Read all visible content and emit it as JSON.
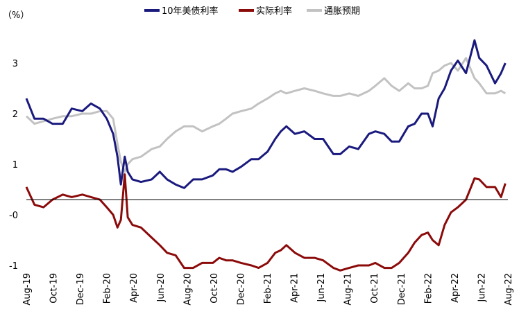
{
  "chart_data": {
    "type": "line",
    "ylabel": "（%）",
    "ylim": [
      -1,
      3.8
    ],
    "y_ticks": [
      "-1",
      "-0",
      "1",
      "2",
      "3"
    ],
    "y_tick_values": [
      -1,
      0,
      1,
      2,
      3
    ],
    "x_ticks": [
      "Aug-19",
      "Oct-19",
      "Dec-19",
      "Feb-20",
      "Apr-20",
      "Jun-20",
      "Aug-20",
      "Oct-20",
      "Dec-20",
      "Feb-21",
      "Apr-21",
      "Jun-21",
      "Aug-21",
      "Oct-21",
      "Dec-21",
      "Feb-22",
      "Apr-22",
      "Jun-22",
      "Aug-22"
    ],
    "xlim": [
      "2019-08-01",
      "2022-08-31"
    ],
    "legend_position": "top",
    "series": [
      {
        "name": "10年美债利率",
        "color": "#1a1a7e",
        "x": [
          "2019-08-01",
          "2019-08-20",
          "2019-09-10",
          "2019-10-01",
          "2019-10-25",
          "2019-11-15",
          "2019-12-10",
          "2019-12-30",
          "2020-01-20",
          "2020-02-05",
          "2020-02-20",
          "2020-03-01",
          "2020-03-09",
          "2020-03-18",
          "2020-03-25",
          "2020-04-05",
          "2020-04-25",
          "2020-05-20",
          "2020-06-08",
          "2020-06-25",
          "2020-07-15",
          "2020-08-04",
          "2020-08-25",
          "2020-09-15",
          "2020-10-10",
          "2020-10-25",
          "2020-11-10",
          "2020-11-25",
          "2020-12-15",
          "2021-01-08",
          "2021-01-25",
          "2021-02-15",
          "2021-03-05",
          "2021-03-18",
          "2021-03-31",
          "2021-04-20",
          "2021-05-12",
          "2021-06-05",
          "2021-06-25",
          "2021-07-19",
          "2021-08-04",
          "2021-08-25",
          "2021-09-15",
          "2021-10-10",
          "2021-10-25",
          "2021-11-15",
          "2021-12-02",
          "2021-12-20",
          "2022-01-10",
          "2022-01-25",
          "2022-02-10",
          "2022-02-25",
          "2022-03-08",
          "2022-03-22",
          "2022-04-05",
          "2022-04-20",
          "2022-05-06",
          "2022-05-25",
          "2022-06-14",
          "2022-06-25",
          "2022-07-12",
          "2022-08-01",
          "2022-08-15",
          "2022-08-25"
        ],
        "values": [
          2.3,
          1.9,
          1.9,
          1.8,
          1.8,
          2.1,
          2.05,
          2.2,
          2.1,
          1.9,
          1.6,
          1.15,
          0.6,
          1.15,
          0.85,
          0.7,
          0.65,
          0.7,
          0.85,
          0.7,
          0.6,
          0.53,
          0.7,
          0.7,
          0.78,
          0.9,
          0.9,
          0.85,
          0.95,
          1.1,
          1.1,
          1.25,
          1.5,
          1.65,
          1.75,
          1.6,
          1.65,
          1.5,
          1.5,
          1.2,
          1.2,
          1.35,
          1.3,
          1.6,
          1.65,
          1.6,
          1.45,
          1.45,
          1.75,
          1.8,
          2.0,
          2.0,
          1.75,
          2.3,
          2.5,
          2.85,
          3.05,
          2.8,
          3.45,
          3.1,
          2.95,
          2.6,
          2.8,
          3.0
        ]
      },
      {
        "name": "实际利率",
        "color": "#8b0a0a",
        "x": [
          "2019-08-01",
          "2019-08-20",
          "2019-09-10",
          "2019-10-01",
          "2019-10-25",
          "2019-11-15",
          "2019-12-10",
          "2019-12-30",
          "2020-01-20",
          "2020-02-05",
          "2020-02-20",
          "2020-03-01",
          "2020-03-09",
          "2020-03-18",
          "2020-03-25",
          "2020-04-05",
          "2020-04-25",
          "2020-05-20",
          "2020-06-08",
          "2020-06-25",
          "2020-07-15",
          "2020-08-04",
          "2020-08-25",
          "2020-09-15",
          "2020-10-10",
          "2020-10-25",
          "2020-11-10",
          "2020-11-25",
          "2020-12-15",
          "2021-01-08",
          "2021-01-25",
          "2021-02-15",
          "2021-03-05",
          "2021-03-18",
          "2021-03-31",
          "2021-04-20",
          "2021-05-12",
          "2021-06-05",
          "2021-06-25",
          "2021-07-19",
          "2021-08-04",
          "2021-08-25",
          "2021-09-15",
          "2021-10-10",
          "2021-10-25",
          "2021-11-15",
          "2021-12-02",
          "2021-12-20",
          "2022-01-10",
          "2022-01-25",
          "2022-02-10",
          "2022-02-25",
          "2022-03-08",
          "2022-03-22",
          "2022-04-05",
          "2022-04-20",
          "2022-05-06",
          "2022-05-25",
          "2022-06-14",
          "2022-06-25",
          "2022-07-12",
          "2022-08-01",
          "2022-08-15",
          "2022-08-25"
        ],
        "values": [
          0.55,
          0.2,
          0.15,
          0.3,
          0.4,
          0.35,
          0.4,
          0.35,
          0.3,
          0.15,
          0.0,
          -0.25,
          -0.1,
          0.8,
          -0.05,
          -0.2,
          -0.25,
          -0.45,
          -0.6,
          -0.75,
          -0.8,
          -1.05,
          -1.05,
          -0.95,
          -0.95,
          -0.85,
          -0.9,
          -0.9,
          -0.95,
          -1.0,
          -1.05,
          -0.95,
          -0.75,
          -0.7,
          -0.6,
          -0.75,
          -0.85,
          -0.85,
          -0.9,
          -1.05,
          -1.1,
          -1.05,
          -1.0,
          -1.0,
          -0.95,
          -1.05,
          -1.05,
          -0.95,
          -0.75,
          -0.55,
          -0.4,
          -0.35,
          -0.5,
          -0.6,
          -0.2,
          0.05,
          0.15,
          0.3,
          0.72,
          0.7,
          0.55,
          0.55,
          0.35,
          0.62
        ]
      },
      {
        "name": "通胀预期",
        "color": "#c2c2c2",
        "x": [
          "2019-08-01",
          "2019-08-20",
          "2019-09-10",
          "2019-10-01",
          "2019-10-25",
          "2019-11-15",
          "2019-12-10",
          "2019-12-30",
          "2020-01-20",
          "2020-02-05",
          "2020-02-20",
          "2020-03-01",
          "2020-03-09",
          "2020-03-18",
          "2020-03-25",
          "2020-04-05",
          "2020-04-25",
          "2020-05-20",
          "2020-06-08",
          "2020-06-25",
          "2020-07-15",
          "2020-08-04",
          "2020-08-25",
          "2020-09-15",
          "2020-10-10",
          "2020-10-25",
          "2020-11-10",
          "2020-11-25",
          "2020-12-15",
          "2021-01-08",
          "2021-01-25",
          "2021-02-15",
          "2021-03-05",
          "2021-03-18",
          "2021-03-31",
          "2021-04-20",
          "2021-05-12",
          "2021-06-05",
          "2021-06-25",
          "2021-07-19",
          "2021-08-04",
          "2021-08-25",
          "2021-09-15",
          "2021-10-10",
          "2021-10-25",
          "2021-11-15",
          "2021-12-02",
          "2021-12-20",
          "2022-01-10",
          "2022-01-25",
          "2022-02-10",
          "2022-02-25",
          "2022-03-08",
          "2022-03-22",
          "2022-04-05",
          "2022-04-20",
          "2022-05-06",
          "2022-05-25",
          "2022-06-14",
          "2022-06-25",
          "2022-07-12",
          "2022-08-01",
          "2022-08-15",
          "2022-08-25"
        ],
        "values": [
          1.95,
          1.8,
          1.85,
          1.9,
          1.95,
          1.95,
          2.0,
          2.0,
          2.05,
          2.05,
          1.9,
          1.4,
          1.05,
          0.85,
          1.0,
          1.1,
          1.15,
          1.3,
          1.35,
          1.5,
          1.65,
          1.75,
          1.75,
          1.65,
          1.75,
          1.8,
          1.9,
          2.0,
          2.05,
          2.1,
          2.2,
          2.3,
          2.4,
          2.45,
          2.4,
          2.45,
          2.5,
          2.45,
          2.4,
          2.35,
          2.35,
          2.4,
          2.35,
          2.45,
          2.55,
          2.7,
          2.55,
          2.45,
          2.6,
          2.5,
          2.5,
          2.55,
          2.8,
          2.85,
          2.95,
          3.0,
          2.85,
          3.1,
          2.7,
          2.6,
          2.4,
          2.4,
          2.45,
          2.4
        ]
      }
    ]
  }
}
